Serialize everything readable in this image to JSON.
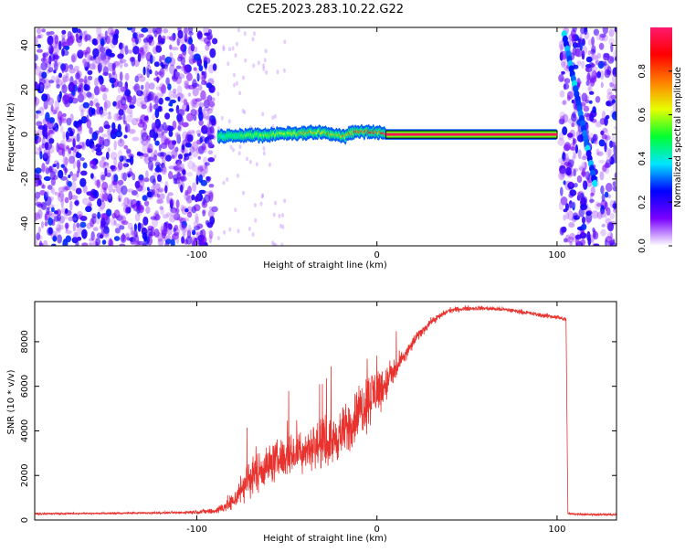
{
  "chart_data": [
    {
      "type": "heatmap",
      "title": "C2E5.2023.283.10.22.G22",
      "xlabel": "Height of straight line (km)",
      "ylabel": "Frequency (Hz)",
      "xlim": [
        -190,
        133
      ],
      "ylim": [
        -50,
        48
      ],
      "x_ticks": [
        -100,
        0,
        100
      ],
      "x_tick_labels": [
        "-100",
        "0",
        "100"
      ],
      "y_ticks": [
        -40,
        -20,
        0,
        20,
        40
      ],
      "y_tick_labels": [
        "-40",
        "-20",
        "0",
        "20",
        "40"
      ],
      "colorbar": {
        "label": "Normalized spectral amplitude",
        "range": [
          0,
          1
        ],
        "ticks": [
          0.0,
          0.2,
          0.4,
          0.6,
          0.8
        ],
        "tick_labels": [
          "0.0",
          "0.2",
          "0.4",
          "0.6",
          "0.8"
        ],
        "colormap": [
          "#ffffff",
          "#7a00ff",
          "#0000ff",
          "#00e5ff",
          "#00ff30",
          "#e6ff00",
          "#ff7f00",
          "#ff0000",
          "#ff1a6e"
        ]
      },
      "regions": {
        "noise_left": [
          -190,
          -90
        ],
        "noise_right": [
          102,
          133
        ],
        "signal_line": {
          "x_start": -88,
          "x_end": 100,
          "freq_center": 0
        }
      },
      "signal_profile": [
        {
          "x": -88,
          "freq": -1,
          "amp": 0.45
        },
        {
          "x": -75,
          "freq": -0.5,
          "amp": 0.55
        },
        {
          "x": -60,
          "freq": 0,
          "amp": 0.6
        },
        {
          "x": -45,
          "freq": 0.5,
          "amp": 0.7
        },
        {
          "x": -30,
          "freq": 1,
          "amp": 0.75
        },
        {
          "x": -20,
          "freq": -1,
          "amp": 0.7
        },
        {
          "x": -10,
          "freq": 1.5,
          "amp": 0.85
        },
        {
          "x": 0,
          "freq": 1,
          "amp": 0.9
        },
        {
          "x": 5,
          "freq": 0,
          "amp": 0.97
        },
        {
          "x": 100,
          "freq": 0,
          "amp": 0.97
        }
      ],
      "diagonal_feature": {
        "x_start": 104,
        "freq_start": 45,
        "x_end": 121,
        "freq_end": -22
      }
    },
    {
      "type": "line",
      "xlabel": "Height of straight line (km)",
      "ylabel": "SNR (10 * v/v)",
      "xlim": [
        -190,
        133
      ],
      "ylim": [
        0,
        9800
      ],
      "x_ticks": [
        -100,
        0,
        100
      ],
      "x_tick_labels": [
        "-100",
        "0",
        "100"
      ],
      "y_ticks": [
        0,
        2000,
        4000,
        6000,
        8000
      ],
      "y_tick_labels": [
        "0",
        "2000",
        "4000",
        "6000",
        "8000"
      ],
      "color": "#e8322e",
      "series": [
        {
          "x": [
            -190,
            -150,
            -110,
            -90,
            -80,
            -72,
            -64,
            -55,
            -45,
            -35,
            -25,
            -15,
            -8,
            -2,
            5,
            10,
            15,
            22,
            30,
            40,
            50,
            60,
            70,
            80,
            90,
            100,
            105,
            106,
            120,
            133
          ],
          "values": [
            280,
            300,
            330,
            400,
            800,
            1800,
            2300,
            2700,
            3000,
            3300,
            3500,
            4200,
            5100,
            5700,
            6100,
            6700,
            7300,
            8200,
            8900,
            9400,
            9500,
            9500,
            9450,
            9350,
            9200,
            9100,
            9000,
            280,
            250,
            240
          ],
          "noise": [
            60,
            60,
            80,
            200,
            600,
            1300,
            1300,
            1300,
            1300,
            1400,
            1500,
            1700,
            1900,
            1800,
            1200,
            800,
            500,
            350,
            250,
            180,
            160,
            150,
            150,
            150,
            150,
            150,
            150,
            80,
            80,
            80
          ]
        }
      ]
    }
  ]
}
